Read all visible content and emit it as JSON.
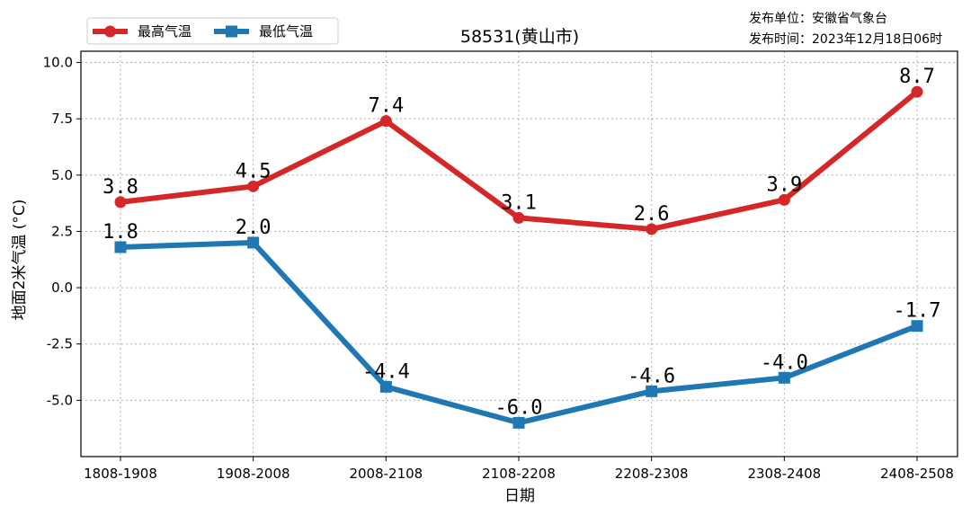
{
  "publisher": {
    "unit_text": "发布单位：安徽省气象台",
    "time_text": "发布时间：2023年12月18日06时"
  },
  "chart_data": {
    "type": "line",
    "title": "58531(黄山市)",
    "xlabel": "日期",
    "ylabel": "地面2米气温 (°C)",
    "categories": [
      "1808-1908",
      "1908-2008",
      "2008-2108",
      "2108-2208",
      "2208-2308",
      "2308-2408",
      "2408-2508"
    ],
    "ylim": [
      -7.5,
      10.5
    ],
    "yticks": [
      -5.0,
      -2.5,
      0.0,
      2.5,
      5.0,
      7.5,
      10.0
    ],
    "ytick_labels": [
      "-5.0",
      "-2.5",
      "0.0",
      "2.5",
      "5.0",
      "7.5",
      "10.0"
    ],
    "grid": true,
    "legend_position": "top-left",
    "series": [
      {
        "name": "最高气温",
        "color": "#d62728",
        "marker": "circle",
        "values": [
          3.8,
          4.5,
          7.4,
          3.1,
          2.6,
          3.9,
          8.7
        ],
        "labels": [
          "3.8",
          "4.5",
          "7.4",
          "3.1",
          "2.6",
          "3.9",
          "8.7"
        ]
      },
      {
        "name": "最低气温",
        "color": "#1f77b4",
        "marker": "square",
        "values": [
          1.8,
          2.0,
          -4.4,
          -6.0,
          -4.6,
          -4.0,
          -1.7
        ],
        "labels": [
          "1.8",
          "2.0",
          "-4.4",
          "-6.0",
          "-4.6",
          "-4.0",
          "-1.7"
        ]
      }
    ]
  }
}
